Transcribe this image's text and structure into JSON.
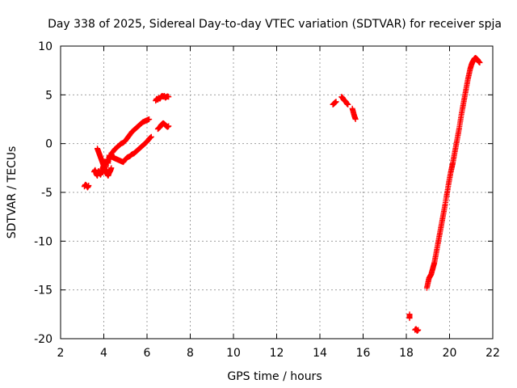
{
  "chart_data": {
    "type": "scatter",
    "title": "Day 338 of 2025, Sidereal Day-to-day VTEC variation (SDTVAR) for receiver spja",
    "xlabel": "GPS time / hours",
    "ylabel": "SDTVAR / TECUs",
    "xlim": [
      2,
      22
    ],
    "ylim": [
      -20,
      10
    ],
    "xticks": [
      "2",
      "4",
      "6",
      "8",
      "10",
      "12",
      "14",
      "16",
      "18",
      "20",
      "22"
    ],
    "yticks": [
      "10",
      "5",
      "0",
      "-5",
      "-10",
      "-15",
      "-20"
    ],
    "grid": true,
    "marker": "plus",
    "colors": {
      "series": "#ff0000",
      "grid": "#a0a0a0",
      "axes": "#000000"
    },
    "series": [
      {
        "name": "SDTVAR",
        "segments": [
          [
            [
              3.1,
              -4.4
            ],
            [
              3.15,
              -4.2
            ],
            [
              3.2,
              -4.3
            ],
            [
              3.25,
              -4.5
            ],
            [
              3.3,
              -4.3
            ]
          ],
          [
            [
              3.55,
              -2.9
            ],
            [
              3.6,
              -2.7
            ],
            [
              3.65,
              -3.1
            ],
            [
              3.7,
              -3.3
            ],
            [
              3.75,
              -2.8
            ],
            [
              3.8,
              -3.0
            ],
            [
              3.85,
              -3.2
            ],
            [
              3.9,
              -2.9
            ],
            [
              3.95,
              -2.5
            ],
            [
              4.0,
              -2.2
            ],
            [
              4.05,
              -1.9
            ],
            [
              4.1,
              -2.4
            ],
            [
              4.15,
              -1.6
            ],
            [
              4.2,
              -2.0
            ],
            [
              4.25,
              -1.2
            ],
            [
              4.3,
              -1.6
            ],
            [
              4.35,
              -1.0
            ],
            [
              4.4,
              -1.4
            ]
          ],
          [
            [
              3.7,
              -0.5
            ],
            [
              3.75,
              -0.8
            ],
            [
              3.8,
              -1.1
            ],
            [
              3.85,
              -1.4
            ],
            [
              3.9,
              -1.7
            ],
            [
              3.95,
              -2.0
            ],
            [
              4.0,
              -2.3
            ],
            [
              4.05,
              -2.6
            ],
            [
              4.1,
              -2.9
            ],
            [
              4.15,
              -3.1
            ],
            [
              4.2,
              -3.3
            ],
            [
              4.25,
              -3.0
            ],
            [
              4.3,
              -2.8
            ],
            [
              4.35,
              -2.5
            ]
          ],
          [
            [
              4.4,
              -0.9
            ],
            [
              4.5,
              -0.6
            ],
            [
              4.6,
              -0.4
            ],
            [
              4.7,
              -0.2
            ],
            [
              4.8,
              0.0
            ],
            [
              4.9,
              0.1
            ],
            [
              5.0,
              0.3
            ],
            [
              5.1,
              0.6
            ],
            [
              5.2,
              0.9
            ],
            [
              5.3,
              1.2
            ],
            [
              5.4,
              1.4
            ],
            [
              5.5,
              1.6
            ],
            [
              5.6,
              1.8
            ],
            [
              5.7,
              2.0
            ],
            [
              5.8,
              2.2
            ],
            [
              5.9,
              2.3
            ],
            [
              6.0,
              2.4
            ],
            [
              6.1,
              2.5
            ]
          ],
          [
            [
              4.3,
              -1.2
            ],
            [
              4.4,
              -1.4
            ],
            [
              4.5,
              -1.5
            ],
            [
              4.6,
              -1.6
            ],
            [
              4.7,
              -1.7
            ],
            [
              4.8,
              -1.8
            ],
            [
              4.9,
              -1.9
            ],
            [
              5.0,
              -1.6
            ],
            [
              5.1,
              -1.4
            ],
            [
              5.2,
              -1.3
            ],
            [
              5.3,
              -1.1
            ],
            [
              5.4,
              -1.0
            ],
            [
              5.5,
              -0.8
            ],
            [
              5.6,
              -0.6
            ],
            [
              5.7,
              -0.4
            ],
            [
              5.8,
              -0.2
            ],
            [
              5.9,
              0.0
            ],
            [
              6.0,
              0.2
            ],
            [
              6.1,
              0.5
            ],
            [
              6.2,
              0.7
            ]
          ],
          [
            [
              6.4,
              4.4
            ],
            [
              6.45,
              4.6
            ],
            [
              6.5,
              4.5
            ],
            [
              6.55,
              4.7
            ],
            [
              6.6,
              4.6
            ],
            [
              6.65,
              4.8
            ],
            [
              6.7,
              4.9
            ],
            [
              6.75,
              4.8
            ],
            [
              6.8,
              4.9
            ],
            [
              6.85,
              4.7
            ],
            [
              6.9,
              4.8
            ],
            [
              6.95,
              4.85
            ],
            [
              7.0,
              4.8
            ]
          ],
          [
            [
              6.5,
              1.5
            ],
            [
              6.55,
              1.6
            ],
            [
              6.6,
              1.7
            ],
            [
              6.65,
              1.9
            ],
            [
              6.7,
              2.0
            ],
            [
              6.75,
              2.1
            ],
            [
              6.8,
              2.0
            ],
            [
              6.85,
              1.9
            ],
            [
              6.9,
              1.8
            ],
            [
              6.95,
              1.7
            ],
            [
              7.0,
              1.8
            ]
          ],
          [
            [
              14.6,
              4.0
            ],
            [
              14.65,
              4.1
            ],
            [
              14.7,
              4.2
            ],
            [
              14.75,
              4.3
            ]
          ],
          [
            [
              15.0,
              4.8
            ],
            [
              15.05,
              4.7
            ],
            [
              15.1,
              4.5
            ],
            [
              15.15,
              4.4
            ],
            [
              15.2,
              4.3
            ],
            [
              15.25,
              4.1
            ],
            [
              15.3,
              4.0
            ]
          ],
          [
            [
              15.5,
              3.6
            ],
            [
              15.55,
              3.2
            ],
            [
              15.6,
              2.8
            ],
            [
              15.65,
              2.5
            ]
          ],
          [
            [
              18.15,
              -17.5
            ],
            [
              18.15,
              -17.9
            ]
          ],
          [
            [
              18.4,
              -19.1
            ],
            [
              18.45,
              -19.0
            ],
            [
              18.5,
              -19.2
            ],
            [
              18.55,
              -19.1
            ]
          ],
          [
            [
              18.95,
              -14.8
            ],
            [
              19.0,
              -14.3
            ],
            [
              19.05,
              -13.8
            ],
            [
              19.1,
              -13.6
            ],
            [
              19.15,
              -13.4
            ],
            [
              19.2,
              -13.0
            ],
            [
              19.25,
              -12.6
            ],
            [
              19.3,
              -12.2
            ],
            [
              19.35,
              -11.6
            ],
            [
              19.4,
              -11.0
            ],
            [
              19.45,
              -10.4
            ],
            [
              19.5,
              -9.8
            ],
            [
              19.55,
              -9.2
            ],
            [
              19.6,
              -8.6
            ],
            [
              19.65,
              -8.0
            ],
            [
              19.7,
              -7.4
            ],
            [
              19.75,
              -6.8
            ],
            [
              19.8,
              -6.2
            ],
            [
              19.85,
              -5.5
            ],
            [
              19.9,
              -4.9
            ],
            [
              19.95,
              -4.2
            ],
            [
              20.0,
              -3.6
            ],
            [
              20.05,
              -3.0
            ],
            [
              20.1,
              -2.5
            ],
            [
              20.15,
              -2.0
            ],
            [
              20.2,
              -1.4
            ],
            [
              20.25,
              -0.8
            ],
            [
              20.3,
              -0.2
            ],
            [
              20.35,
              0.4
            ],
            [
              20.4,
              1.0
            ],
            [
              20.45,
              1.6
            ],
            [
              20.5,
              2.3
            ],
            [
              20.55,
              3.0
            ],
            [
              20.6,
              3.6
            ],
            [
              20.65,
              4.2
            ],
            [
              20.7,
              4.8
            ],
            [
              20.75,
              5.4
            ],
            [
              20.8,
              6.0
            ],
            [
              20.85,
              6.6
            ],
            [
              20.9,
              7.1
            ],
            [
              20.95,
              7.6
            ],
            [
              21.0,
              8.0
            ],
            [
              21.05,
              8.3
            ],
            [
              21.1,
              8.5
            ],
            [
              21.15,
              8.7
            ],
            [
              21.2,
              8.8
            ],
            [
              21.25,
              8.7
            ],
            [
              21.3,
              8.6
            ],
            [
              21.35,
              8.4
            ],
            [
              21.4,
              8.3
            ]
          ]
        ]
      }
    ]
  }
}
